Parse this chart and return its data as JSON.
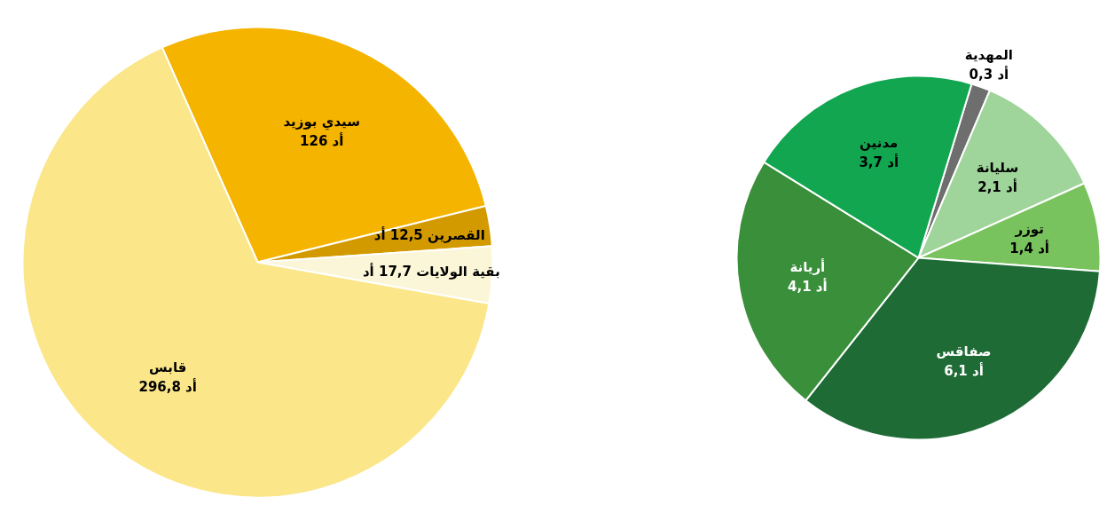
{
  "chart_data": [
    {
      "type": "pie",
      "categories": [
        "سيدي بوزيد",
        "القصرين",
        "بقية الولايات",
        "قابس"
      ],
      "values": [
        126,
        12.5,
        17.7,
        296.8
      ],
      "colors": [
        "#f5b400",
        "#d39a00",
        "#fbf6d8",
        "#fbe68a"
      ],
      "value_labels": [
        "126 أد",
        "12,5 أد",
        "17,7 أد",
        "296,8 أد"
      ]
    },
    {
      "type": "pie",
      "categories": [
        "المهدية",
        "سليانة",
        "توزر",
        "صفاقس",
        "أريانة",
        "مدنين"
      ],
      "values": [
        0.3,
        2.1,
        1.4,
        6.1,
        4.1,
        3.7
      ],
      "colors": [
        "#6e6e6e",
        "#9fd49a",
        "#79c35e",
        "#1e6b35",
        "#3a8f3a",
        "#12a650"
      ],
      "value_labels": [
        "0,3 أد",
        "2,1 أد",
        "1,4 أد",
        "6,1 أد",
        "4,1 أد",
        "3,7 أد"
      ]
    }
  ]
}
